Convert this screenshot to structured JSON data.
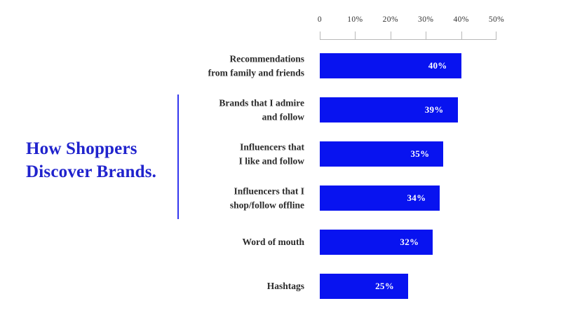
{
  "chart_data": {
    "type": "bar",
    "orientation": "horizontal",
    "title": "How Shoppers\nDiscover Brands.",
    "categories": [
      "Recommendations\nfrom family and friends",
      "Brands that I admire\nand follow",
      "Influencers that\nI like and follow",
      "Influencers that I\nshop/follow offline",
      "Word of mouth",
      "Hashtags"
    ],
    "values": [
      40,
      39,
      35,
      34,
      32,
      25
    ],
    "value_labels": [
      "40%",
      "39%",
      "35%",
      "34%",
      "32%",
      "25%"
    ],
    "x_ticks": [
      "0",
      "10%",
      "20%",
      "30%",
      "40%",
      "50%"
    ],
    "xlim": [
      0,
      50
    ],
    "xlabel": "",
    "ylabel": "",
    "grid": false,
    "legend": "none",
    "value_label_position": "inside-right"
  },
  "colors": {
    "bar": "#0813f0",
    "title": "#2023cd",
    "divider": "#3236ee",
    "axis": "#b8b8b8",
    "category_label": "#2b2b2b",
    "tick_label": "#333333",
    "value_label": "#ffffff",
    "background": "#ffffff"
  }
}
